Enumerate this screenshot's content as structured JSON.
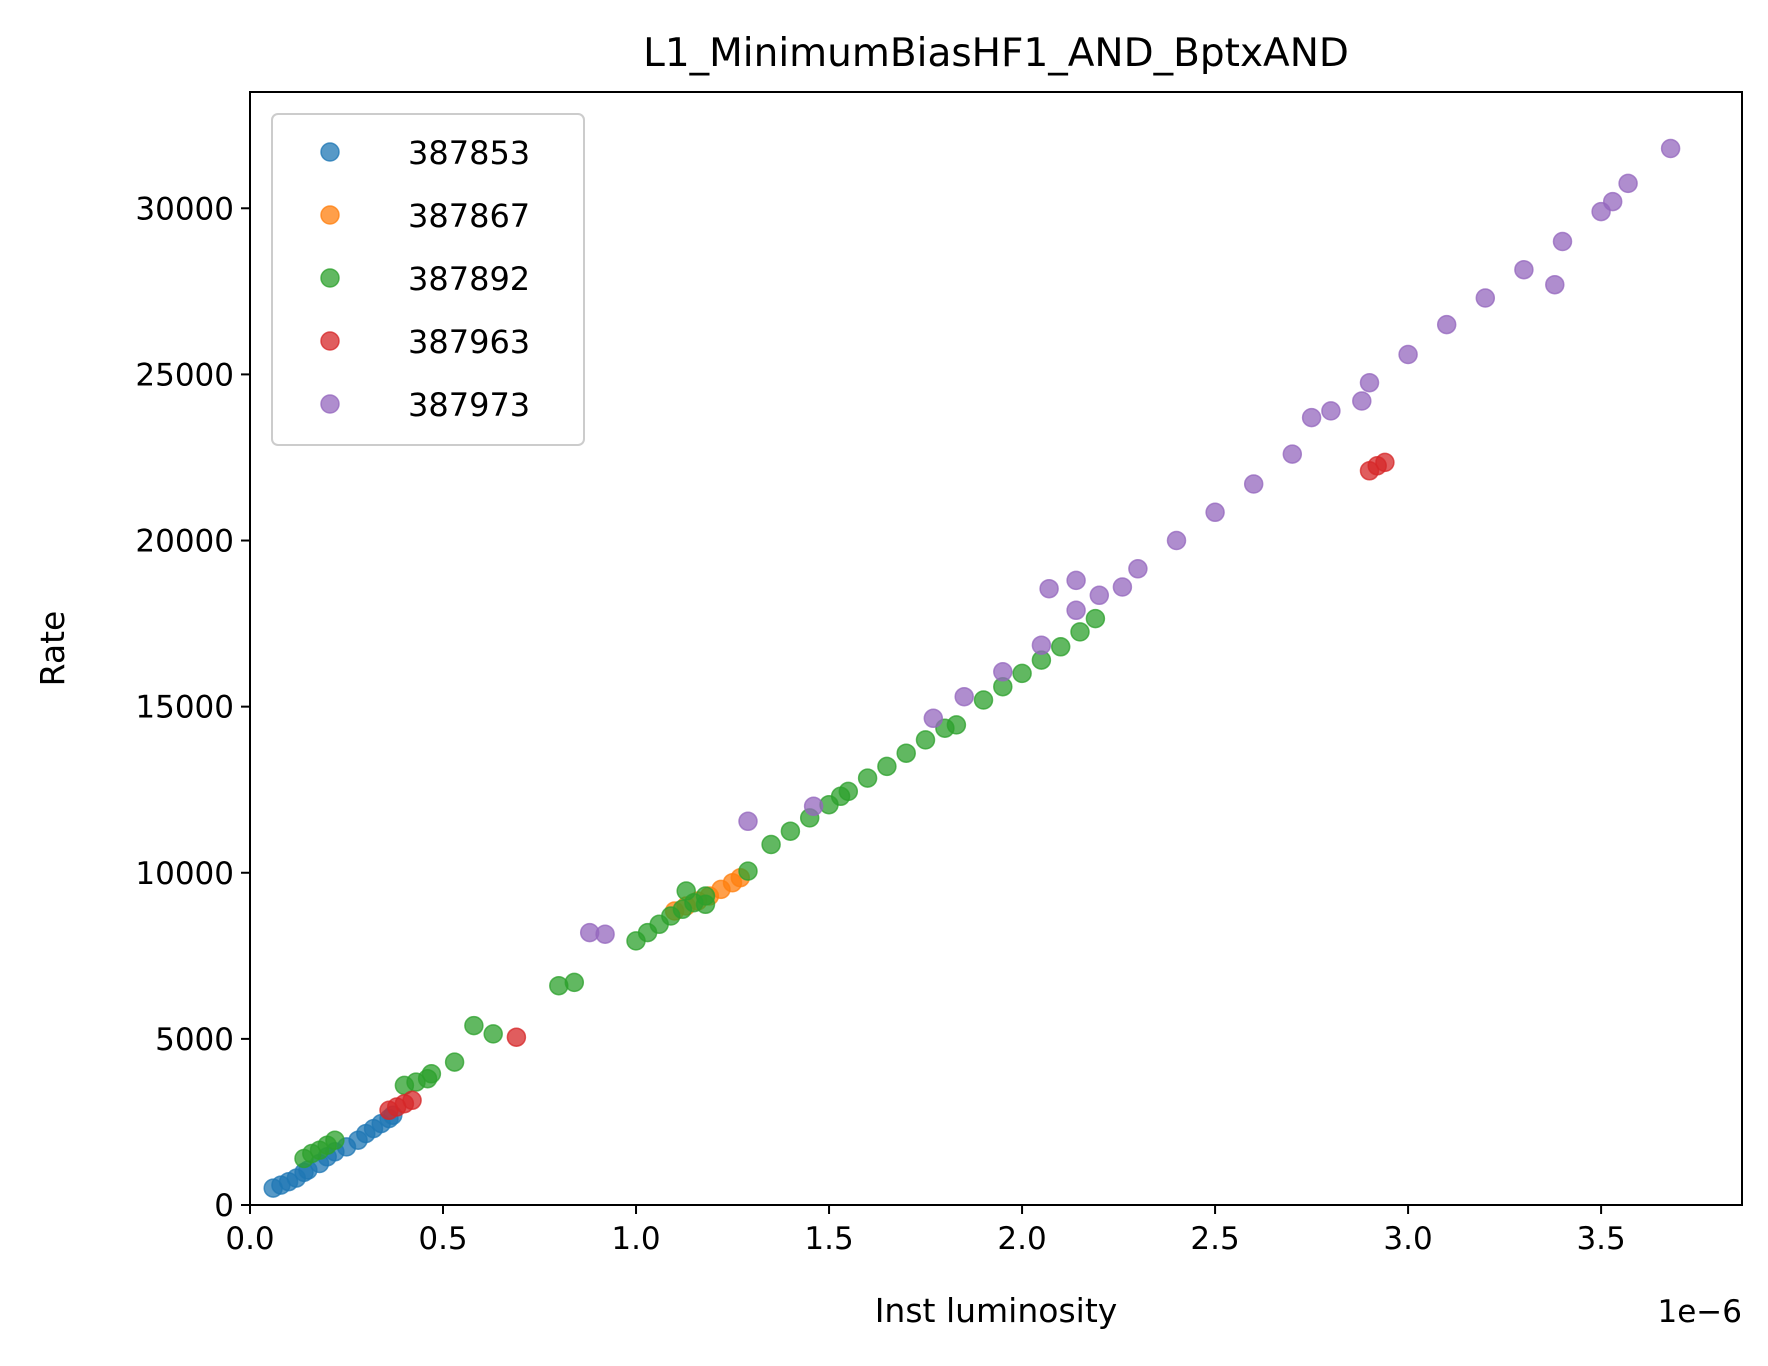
{
  "chart_data": {
    "type": "scatter",
    "title": "L1_MinimumBiasHF1_AND_BptxAND",
    "xlabel": "Inst luminosity",
    "ylabel": "Rate",
    "x_offset_label": "1e−6",
    "x_scale": 1e-06,
    "xlim": [
      0.0,
      3.865
    ],
    "ylim": [
      0,
      33500
    ],
    "x_ticks": [
      0.0,
      0.5,
      1.0,
      1.5,
      2.0,
      2.5,
      3.0,
      3.5
    ],
    "x_tick_labels": [
      "0.0",
      "0.5",
      "1.0",
      "1.5",
      "2.0",
      "2.5",
      "3.0",
      "3.5"
    ],
    "y_ticks": [
      0,
      5000,
      10000,
      15000,
      20000,
      25000,
      30000
    ],
    "y_tick_labels": [
      "0",
      "5000",
      "10000",
      "15000",
      "20000",
      "25000",
      "30000"
    ],
    "grid": false,
    "legend_position": "upper-left",
    "series": [
      {
        "name": "387853",
        "color": "#1f77b4",
        "points": [
          [
            0.06,
            510
          ],
          [
            0.08,
            600
          ],
          [
            0.1,
            700
          ],
          [
            0.12,
            810
          ],
          [
            0.14,
            980
          ],
          [
            0.15,
            1050
          ],
          [
            0.18,
            1250
          ],
          [
            0.2,
            1450
          ],
          [
            0.22,
            1600
          ],
          [
            0.25,
            1750
          ],
          [
            0.28,
            1950
          ],
          [
            0.3,
            2150
          ],
          [
            0.32,
            2300
          ],
          [
            0.34,
            2450
          ],
          [
            0.36,
            2600
          ],
          [
            0.37,
            2700
          ]
        ]
      },
      {
        "name": "387867",
        "color": "#ff7f0e",
        "points": [
          [
            1.1,
            8850
          ],
          [
            1.13,
            9000
          ],
          [
            1.16,
            9150
          ],
          [
            1.19,
            9300
          ],
          [
            1.22,
            9500
          ],
          [
            1.25,
            9700
          ],
          [
            1.27,
            9850
          ]
        ]
      },
      {
        "name": "387892",
        "color": "#2ca02c",
        "points": [
          [
            0.14,
            1400
          ],
          [
            0.16,
            1550
          ],
          [
            0.18,
            1650
          ],
          [
            0.2,
            1800
          ],
          [
            0.22,
            1950
          ],
          [
            0.4,
            3600
          ],
          [
            0.43,
            3700
          ],
          [
            0.46,
            3800
          ],
          [
            0.47,
            3950
          ],
          [
            0.53,
            4300
          ],
          [
            0.58,
            5400
          ],
          [
            0.63,
            5150
          ],
          [
            0.8,
            6600
          ],
          [
            0.84,
            6700
          ],
          [
            1.0,
            7950
          ],
          [
            1.03,
            8200
          ],
          [
            1.06,
            8450
          ],
          [
            1.09,
            8700
          ],
          [
            1.12,
            8900
          ],
          [
            1.15,
            9100
          ],
          [
            1.18,
            9300
          ],
          [
            1.13,
            9450
          ],
          [
            1.18,
            9050
          ],
          [
            1.29,
            10050
          ],
          [
            1.35,
            10850
          ],
          [
            1.4,
            11250
          ],
          [
            1.45,
            11650
          ],
          [
            1.5,
            12050
          ],
          [
            1.53,
            12300
          ],
          [
            1.55,
            12450
          ],
          [
            1.6,
            12850
          ],
          [
            1.65,
            13200
          ],
          [
            1.7,
            13600
          ],
          [
            1.75,
            14000
          ],
          [
            1.8,
            14350
          ],
          [
            1.83,
            14450
          ],
          [
            1.9,
            15200
          ],
          [
            1.95,
            15600
          ],
          [
            2.0,
            16000
          ],
          [
            2.05,
            16400
          ],
          [
            2.1,
            16800
          ],
          [
            2.15,
            17250
          ],
          [
            2.19,
            17650
          ]
        ]
      },
      {
        "name": "387963",
        "color": "#d62728",
        "points": [
          [
            0.36,
            2850
          ],
          [
            0.38,
            2950
          ],
          [
            0.4,
            3050
          ],
          [
            0.42,
            3150
          ],
          [
            0.69,
            5050
          ],
          [
            2.9,
            22100
          ],
          [
            2.92,
            22250
          ],
          [
            2.94,
            22350
          ]
        ]
      },
      {
        "name": "387973",
        "color": "#9467bd",
        "points": [
          [
            0.88,
            8200
          ],
          [
            0.92,
            8150
          ],
          [
            1.29,
            11550
          ],
          [
            1.46,
            12000
          ],
          [
            1.77,
            14650
          ],
          [
            1.85,
            15300
          ],
          [
            1.95,
            16050
          ],
          [
            2.05,
            16850
          ],
          [
            2.07,
            18550
          ],
          [
            2.14,
            17900
          ],
          [
            2.14,
            18800
          ],
          [
            2.2,
            18350
          ],
          [
            2.26,
            18600
          ],
          [
            2.3,
            19150
          ],
          [
            2.4,
            20000
          ],
          [
            2.5,
            20850
          ],
          [
            2.6,
            21700
          ],
          [
            2.7,
            22600
          ],
          [
            2.75,
            23700
          ],
          [
            2.8,
            23900
          ],
          [
            2.88,
            24200
          ],
          [
            2.9,
            24750
          ],
          [
            3.0,
            25600
          ],
          [
            3.1,
            26500
          ],
          [
            3.2,
            27300
          ],
          [
            3.3,
            28150
          ],
          [
            3.38,
            27700
          ],
          [
            3.4,
            29000
          ],
          [
            3.5,
            29900
          ],
          [
            3.53,
            30200
          ],
          [
            3.57,
            30750
          ],
          [
            3.68,
            31800
          ]
        ]
      }
    ]
  }
}
